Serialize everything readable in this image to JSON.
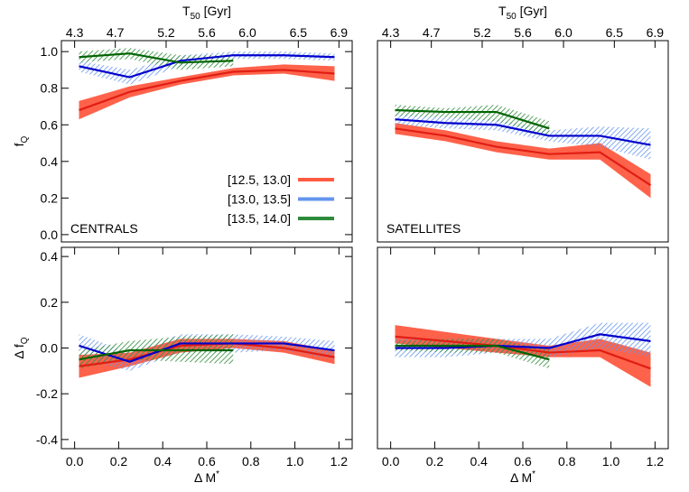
{
  "chart_data": [
    {
      "type": "line",
      "annotation": "CENTRALS",
      "x2label": {
        "text": "T",
        "sub": "50",
        "after": " [Gyr]"
      },
      "ylabel": {
        "text": "f",
        "sub": "Q"
      },
      "x": [
        0.02,
        0.25,
        0.48,
        0.72,
        0.95,
        1.18
      ],
      "xlim": [
        -0.06,
        1.26
      ],
      "x2lim": [
        4.17,
        7.03
      ],
      "x2ticks": [
        4.3,
        4.7,
        5.2,
        5.6,
        {
          "value": 6,
          "label": "6.0"
        },
        6.5,
        6.9
      ],
      "ylim": [
        -0.04,
        1.06
      ],
      "yticks": [
        {
          "value": 0,
          "label": "0.0"
        },
        0.2,
        0.4,
        0.6,
        0.8,
        {
          "value": 1,
          "label": "1.0"
        }
      ],
      "legend": "lower right",
      "series": [
        {
          "name": "[12.5, 13.0]",
          "color": "#e01e14",
          "band_color": "#ff5a40",
          "hatch": false,
          "values": [
            0.68,
            0.78,
            0.84,
            0.89,
            0.9,
            0.88
          ],
          "low": [
            0.63,
            0.75,
            0.82,
            0.87,
            0.88,
            0.84
          ],
          "high": [
            0.73,
            0.81,
            0.86,
            0.91,
            0.93,
            0.92
          ]
        },
        {
          "name": "[13.0, 13.5]",
          "color": "#0000cc",
          "band_color": "#6495ed",
          "hatch": true,
          "values": [
            0.92,
            0.86,
            0.95,
            0.98,
            0.98,
            0.97
          ],
          "low": [
            0.89,
            0.82,
            0.92,
            0.96,
            0.96,
            0.95
          ],
          "high": [
            0.95,
            0.9,
            0.98,
            1.0,
            1.0,
            0.99
          ]
        },
        {
          "name": "[13.5, 14.0]",
          "color": "#006400",
          "band_color": "#2e8b3a",
          "hatch": true,
          "values": [
            0.97,
            0.99,
            0.94,
            0.95,
            null,
            null
          ],
          "low": [
            0.94,
            0.96,
            0.9,
            0.92,
            null,
            null
          ],
          "high": [
            1.0,
            1.02,
            0.98,
            0.98,
            null,
            null
          ]
        }
      ]
    },
    {
      "type": "line",
      "annotation": "SATELLITES",
      "x2label": {
        "text": "T",
        "sub": "50",
        "after": " [Gyr]"
      },
      "x": [
        0.02,
        0.25,
        0.48,
        0.72,
        0.95,
        1.18
      ],
      "xlim": [
        -0.06,
        1.26
      ],
      "x2lim": [
        4.17,
        7.03
      ],
      "x2ticks": [
        4.3,
        4.7,
        5.2,
        5.6,
        {
          "value": 6,
          "label": "6.0"
        },
        6.5,
        6.9
      ],
      "ylim": [
        -0.04,
        1.06
      ],
      "series": [
        {
          "color": "#e01e14",
          "band_color": "#ff5a40",
          "hatch": false,
          "values": [
            0.58,
            0.54,
            0.48,
            0.44,
            0.45,
            0.27
          ],
          "low": [
            0.55,
            0.51,
            0.45,
            0.41,
            0.41,
            0.2
          ],
          "high": [
            0.61,
            0.57,
            0.51,
            0.47,
            0.5,
            0.33
          ]
        },
        {
          "color": "#0000cc",
          "band_color": "#6495ed",
          "hatch": true,
          "values": [
            0.63,
            0.61,
            0.6,
            0.54,
            0.54,
            0.49
          ],
          "low": [
            0.6,
            0.58,
            0.57,
            0.51,
            0.48,
            0.41
          ],
          "high": [
            0.66,
            0.64,
            0.63,
            0.57,
            0.59,
            0.58
          ]
        },
        {
          "color": "#006400",
          "band_color": "#2e8b3a",
          "hatch": true,
          "values": [
            0.68,
            0.67,
            0.67,
            0.58,
            null,
            null
          ],
          "low": [
            0.65,
            0.64,
            0.62,
            0.54,
            null,
            null
          ],
          "high": [
            0.71,
            0.69,
            0.71,
            0.62,
            null,
            null
          ]
        }
      ]
    },
    {
      "type": "line",
      "xlabel": {
        "text": "Δ M",
        "sup": "*"
      },
      "ylabel": {
        "text": "Δ f",
        "sub": "Q"
      },
      "x": [
        0.02,
        0.25,
        0.48,
        0.72,
        0.95,
        1.18
      ],
      "xlim": [
        -0.06,
        1.26
      ],
      "xticks": [
        {
          "value": 0,
          "label": "0.0"
        },
        0.2,
        0.4,
        0.6,
        0.8,
        {
          "value": 1,
          "label": "1.0"
        },
        1.2
      ],
      "ylim": [
        -0.44,
        0.44
      ],
      "yticks": [
        -0.4,
        -0.2,
        {
          "value": 0,
          "label": "0.0"
        },
        0.2,
        0.4
      ],
      "series": [
        {
          "color": "#e01e14",
          "band_color": "#ff5a40",
          "hatch": false,
          "values": [
            -0.08,
            -0.05,
            0.01,
            0.02,
            0.0,
            -0.04
          ],
          "low": [
            -0.13,
            -0.08,
            -0.02,
            0.0,
            -0.02,
            -0.07
          ],
          "high": [
            -0.03,
            -0.02,
            0.04,
            0.04,
            0.03,
            -0.01
          ]
        },
        {
          "color": "#0000cc",
          "band_color": "#6495ed",
          "hatch": true,
          "values": [
            0.01,
            -0.06,
            0.02,
            0.02,
            0.02,
            -0.01
          ],
          "low": [
            -0.04,
            -0.1,
            -0.02,
            -0.02,
            -0.01,
            -0.05
          ],
          "high": [
            0.06,
            -0.02,
            0.06,
            0.06,
            0.05,
            0.03
          ]
        },
        {
          "color": "#006400",
          "band_color": "#2e8b3a",
          "hatch": true,
          "values": [
            -0.05,
            -0.01,
            -0.01,
            -0.01,
            null,
            null
          ],
          "low": [
            -0.09,
            -0.05,
            -0.06,
            -0.07,
            null,
            null
          ],
          "high": [
            -0.01,
            0.03,
            0.05,
            0.06,
            null,
            null
          ]
        }
      ]
    },
    {
      "type": "line",
      "xlabel": {
        "text": "Δ M",
        "sup": "*"
      },
      "x": [
        0.02,
        0.25,
        0.48,
        0.72,
        0.95,
        1.18
      ],
      "xlim": [
        -0.06,
        1.26
      ],
      "xticks": [
        {
          "value": 0,
          "label": "0.0"
        },
        0.2,
        0.4,
        0.6,
        0.8,
        {
          "value": 1,
          "label": "1.0"
        },
        1.2
      ],
      "ylim": [
        -0.44,
        0.44
      ],
      "series": [
        {
          "color": "#e01e14",
          "band_color": "#ff5a40",
          "hatch": false,
          "values": [
            0.05,
            0.03,
            0.01,
            -0.02,
            -0.01,
            -0.09
          ],
          "low": [
            0.02,
            0.0,
            -0.02,
            -0.04,
            -0.04,
            -0.17
          ],
          "high": [
            0.1,
            0.07,
            0.04,
            0.01,
            0.04,
            -0.02
          ]
        },
        {
          "color": "#0000cc",
          "band_color": "#6495ed",
          "hatch": true,
          "values": [
            0.0,
            0.0,
            0.01,
            0.0,
            0.06,
            0.03
          ],
          "low": [
            -0.04,
            -0.04,
            -0.02,
            -0.04,
            0.0,
            -0.04
          ],
          "high": [
            0.04,
            0.04,
            0.04,
            0.04,
            0.11,
            0.11
          ]
        },
        {
          "color": "#006400",
          "band_color": "#2e8b3a",
          "hatch": true,
          "values": [
            0.01,
            0.01,
            0.01,
            -0.05,
            null,
            null
          ],
          "low": [
            -0.01,
            -0.02,
            -0.02,
            -0.09,
            null,
            null
          ],
          "high": [
            0.03,
            0.04,
            0.04,
            -0.01,
            null,
            null
          ]
        }
      ]
    }
  ]
}
